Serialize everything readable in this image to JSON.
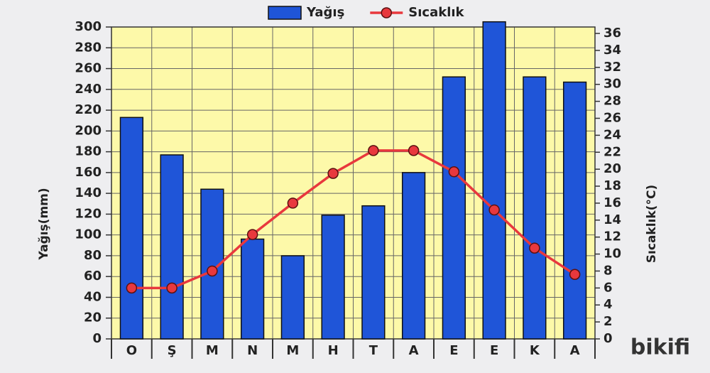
{
  "chart_data": {
    "type": "bar",
    "categories": [
      "O",
      "Ş",
      "M",
      "N",
      "M",
      "H",
      "T",
      "A",
      "E",
      "E",
      "K",
      "A"
    ],
    "series": [
      {
        "name": "Yağış",
        "type": "bar",
        "color": "#1f55d8",
        "values": [
          213,
          177,
          144,
          96,
          80,
          119,
          128,
          160,
          252,
          305,
          252,
          247
        ]
      },
      {
        "name": "Sıcaklık",
        "type": "line",
        "axis": "y2",
        "color": "#e8383d",
        "values": [
          6,
          6,
          8,
          12.3,
          16,
          19.5,
          22.2,
          22.2,
          19.7,
          15.2,
          10.7,
          7.6
        ]
      }
    ],
    "y_label": "Yağış(mm)",
    "y2_label": "Sıcaklık(°C)",
    "ylim": [
      0,
      300
    ],
    "yticks": [
      0,
      20,
      40,
      60,
      80,
      100,
      120,
      140,
      160,
      180,
      200,
      220,
      240,
      260,
      280,
      300
    ],
    "y2lim": [
      0,
      36.76
    ],
    "y2ticks": [
      0,
      2,
      4,
      6,
      8,
      10,
      12,
      14,
      16,
      18,
      20,
      22,
      24,
      26,
      28,
      30,
      32,
      34,
      36
    ],
    "grid": true,
    "legend": "top",
    "plot_background": "#fdf9a9",
    "watermark": "bikifi"
  }
}
